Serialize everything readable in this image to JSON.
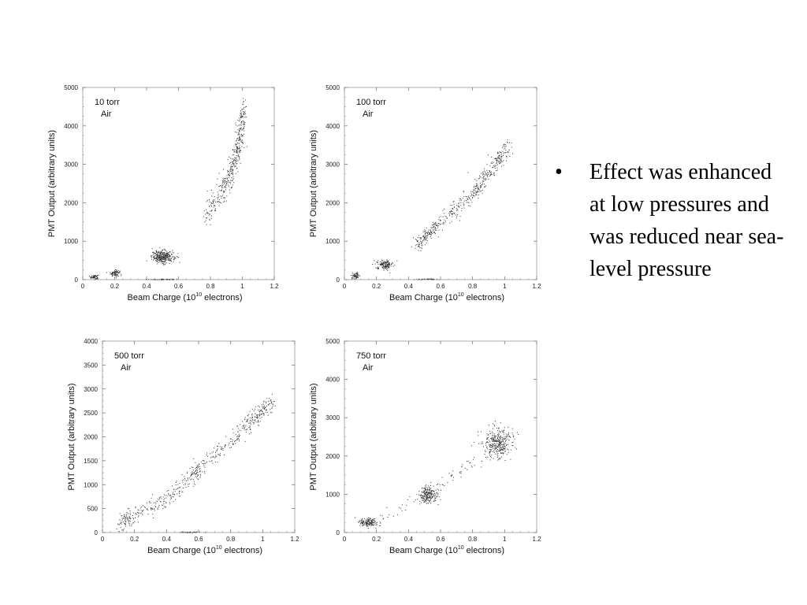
{
  "bullet": {
    "marker": "•",
    "text": "Effect was enhanced at low pressures and was reduced near sea-level pressure"
  },
  "chart_data": [
    {
      "type": "scatter",
      "label_line1": "10 torr",
      "label_line2": "Air",
      "xlabel": "Beam Charge (10",
      "xlabel_sup": "10",
      "xlabel_tail": " electrons)",
      "ylabel": "PMT Output (arbitrary units)",
      "xlim": [
        0,
        1.2
      ],
      "ylim": [
        0,
        5000
      ],
      "xticks": [
        "0",
        "0.2",
        "0.4",
        "0.6",
        "0.8",
        "1",
        "1.2"
      ],
      "yticks": [
        "0",
        "1000",
        "2000",
        "3000",
        "4000",
        "5000"
      ],
      "clusters": [
        {
          "x": 0.07,
          "y": 80,
          "sx": 0.012,
          "sy": 30,
          "n": 70
        },
        {
          "x": 0.2,
          "y": 180,
          "sx": 0.015,
          "sy": 40,
          "n": 80
        },
        {
          "x": 0.5,
          "y": 600,
          "sx": 0.035,
          "sy": 80,
          "n": 320
        },
        {
          "x": 0.5,
          "y": 15,
          "sx": 0.05,
          "sy": 6,
          "n": 40
        }
      ],
      "trend": [
        [
          0.76,
          1650
        ],
        [
          0.86,
          2250
        ],
        [
          0.92,
          2700
        ],
        [
          0.96,
          3300
        ],
        [
          0.99,
          3850
        ],
        [
          1.01,
          4400
        ]
      ],
      "trend_n": 420,
      "trend_sx": 0.012,
      "trend_sy": 180
    },
    {
      "type": "scatter",
      "label_line1": "100 torr",
      "label_line2": "Air",
      "xlabel": "Beam Charge (10",
      "xlabel_sup": "10",
      "xlabel_tail": " electrons)",
      "ylabel": "PMT Output (arbitrary units)",
      "xlim": [
        0,
        1.2
      ],
      "ylim": [
        0,
        5000
      ],
      "xticks": [
        "0",
        "0.2",
        "0.4",
        "0.6",
        "0.8",
        "1",
        "1.2"
      ],
      "yticks": [
        "0",
        "1000",
        "2000",
        "3000",
        "4000",
        "5000"
      ],
      "clusters": [
        {
          "x": 0.07,
          "y": 110,
          "sx": 0.012,
          "sy": 40,
          "n": 60
        },
        {
          "x": 0.25,
          "y": 400,
          "sx": 0.025,
          "sy": 60,
          "n": 150
        },
        {
          "x": 0.5,
          "y": 20,
          "sx": 0.05,
          "sy": 8,
          "n": 30
        }
      ],
      "trend": [
        [
          0.45,
          900
        ],
        [
          0.58,
          1450
        ],
        [
          0.8,
          2250
        ],
        [
          0.92,
          2900
        ],
        [
          1.03,
          3500
        ]
      ],
      "trend_n": 480,
      "trend_sx": 0.015,
      "trend_sy": 110
    },
    {
      "type": "scatter",
      "label_line1": "500 torr",
      "label_line2": "Air",
      "xlabel": "Beam Charge (10",
      "xlabel_sup": "10",
      "xlabel_tail": " electrons)",
      "ylabel": "PMT Output (arbitrary units)",
      "xlim": [
        0,
        1.2
      ],
      "ylim": [
        0,
        4000
      ],
      "xticks": [
        "0",
        "0.2",
        "0.4",
        "0.6",
        "0.8",
        "1",
        "1.2"
      ],
      "yticks": [
        "0",
        "500",
        "1000",
        "1500",
        "2000",
        "2500",
        "3000",
        "3500",
        "4000"
      ],
      "clusters": [
        {
          "x": 0.55,
          "y": 15,
          "sx": 0.04,
          "sy": 6,
          "n": 30
        }
      ],
      "trend": [
        [
          0.1,
          180
        ],
        [
          0.18,
          320
        ],
        [
          0.4,
          700
        ],
        [
          0.55,
          1150
        ],
        [
          0.62,
          1400
        ],
        [
          0.85,
          2050
        ],
        [
          0.95,
          2400
        ],
        [
          1.06,
          2750
        ]
      ],
      "trend_n": 560,
      "trend_sx": 0.015,
      "trend_sy": 90
    },
    {
      "type": "scatter",
      "label_line1": "750 torr",
      "label_line2": "Air",
      "xlabel": "Beam Charge (10",
      "xlabel_sup": "10",
      "xlabel_tail": " electrons)",
      "ylabel": "PMT Output (arbitrary units)",
      "xlim": [
        0,
        1.2
      ],
      "ylim": [
        0,
        5000
      ],
      "xticks": [
        "0",
        "0.2",
        "0.4",
        "0.6",
        "0.8",
        "1",
        "1.2"
      ],
      "yticks": [
        "0",
        "1000",
        "2000",
        "3000",
        "4000",
        "5000"
      ],
      "clusters": [
        {
          "x": 0.15,
          "y": 270,
          "sx": 0.03,
          "sy": 60,
          "n": 150
        },
        {
          "x": 0.52,
          "y": 1000,
          "sx": 0.03,
          "sy": 120,
          "n": 220
        },
        {
          "x": 0.95,
          "y": 2350,
          "sx": 0.05,
          "sy": 200,
          "n": 330
        }
      ],
      "trend": [
        [
          0.2,
          350
        ],
        [
          0.45,
          800
        ],
        [
          0.65,
          1400
        ],
        [
          0.85,
          2000
        ]
      ],
      "trend_n": 60,
      "trend_sx": 0.02,
      "trend_sy": 100
    }
  ]
}
